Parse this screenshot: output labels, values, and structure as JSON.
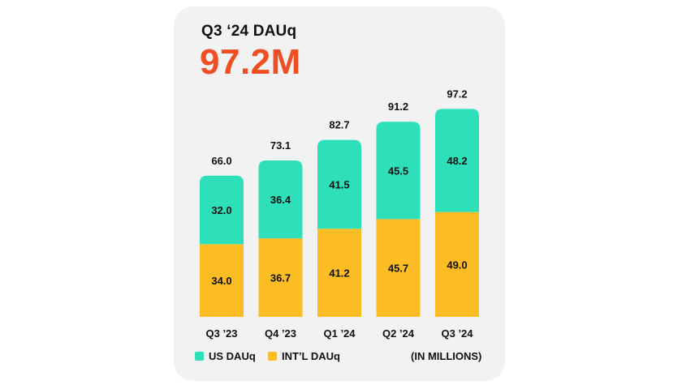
{
  "header": {
    "subtitle": "Q3 ‘24 DAUq",
    "headline": "97.2M"
  },
  "legend": {
    "us_label": "US DAUq",
    "intl_label": "INT’L DAUq",
    "units": "(IN MILLIONS)"
  },
  "colors": {
    "us": "#2de0ba",
    "intl": "#fbbd23",
    "headline": "#f04e23",
    "card": "#f2f2f2"
  },
  "chart_data": {
    "type": "bar",
    "stacked": true,
    "categories": [
      "Q3 '23",
      "Q4 '23",
      "Q1 '24",
      "Q2 '24",
      "Q3 '24"
    ],
    "series": [
      {
        "name": "INT’L DAUq",
        "values": [
          34.0,
          36.7,
          41.2,
          45.7,
          49.0
        ]
      },
      {
        "name": "US DAUq",
        "values": [
          32.0,
          36.4,
          41.5,
          45.5,
          48.2
        ]
      }
    ],
    "totals": [
      "66.0",
      "73.1",
      "82.7",
      "91.2",
      "97.2"
    ],
    "intl_labels": [
      "34.0",
      "36.7",
      "41.2",
      "45.7",
      "49.0"
    ],
    "us_labels": [
      "32.0",
      "36.4",
      "41.5",
      "45.5",
      "48.2"
    ],
    "units": "(IN MILLIONS)",
    "legend_position": "bottom-left",
    "grid": false
  }
}
